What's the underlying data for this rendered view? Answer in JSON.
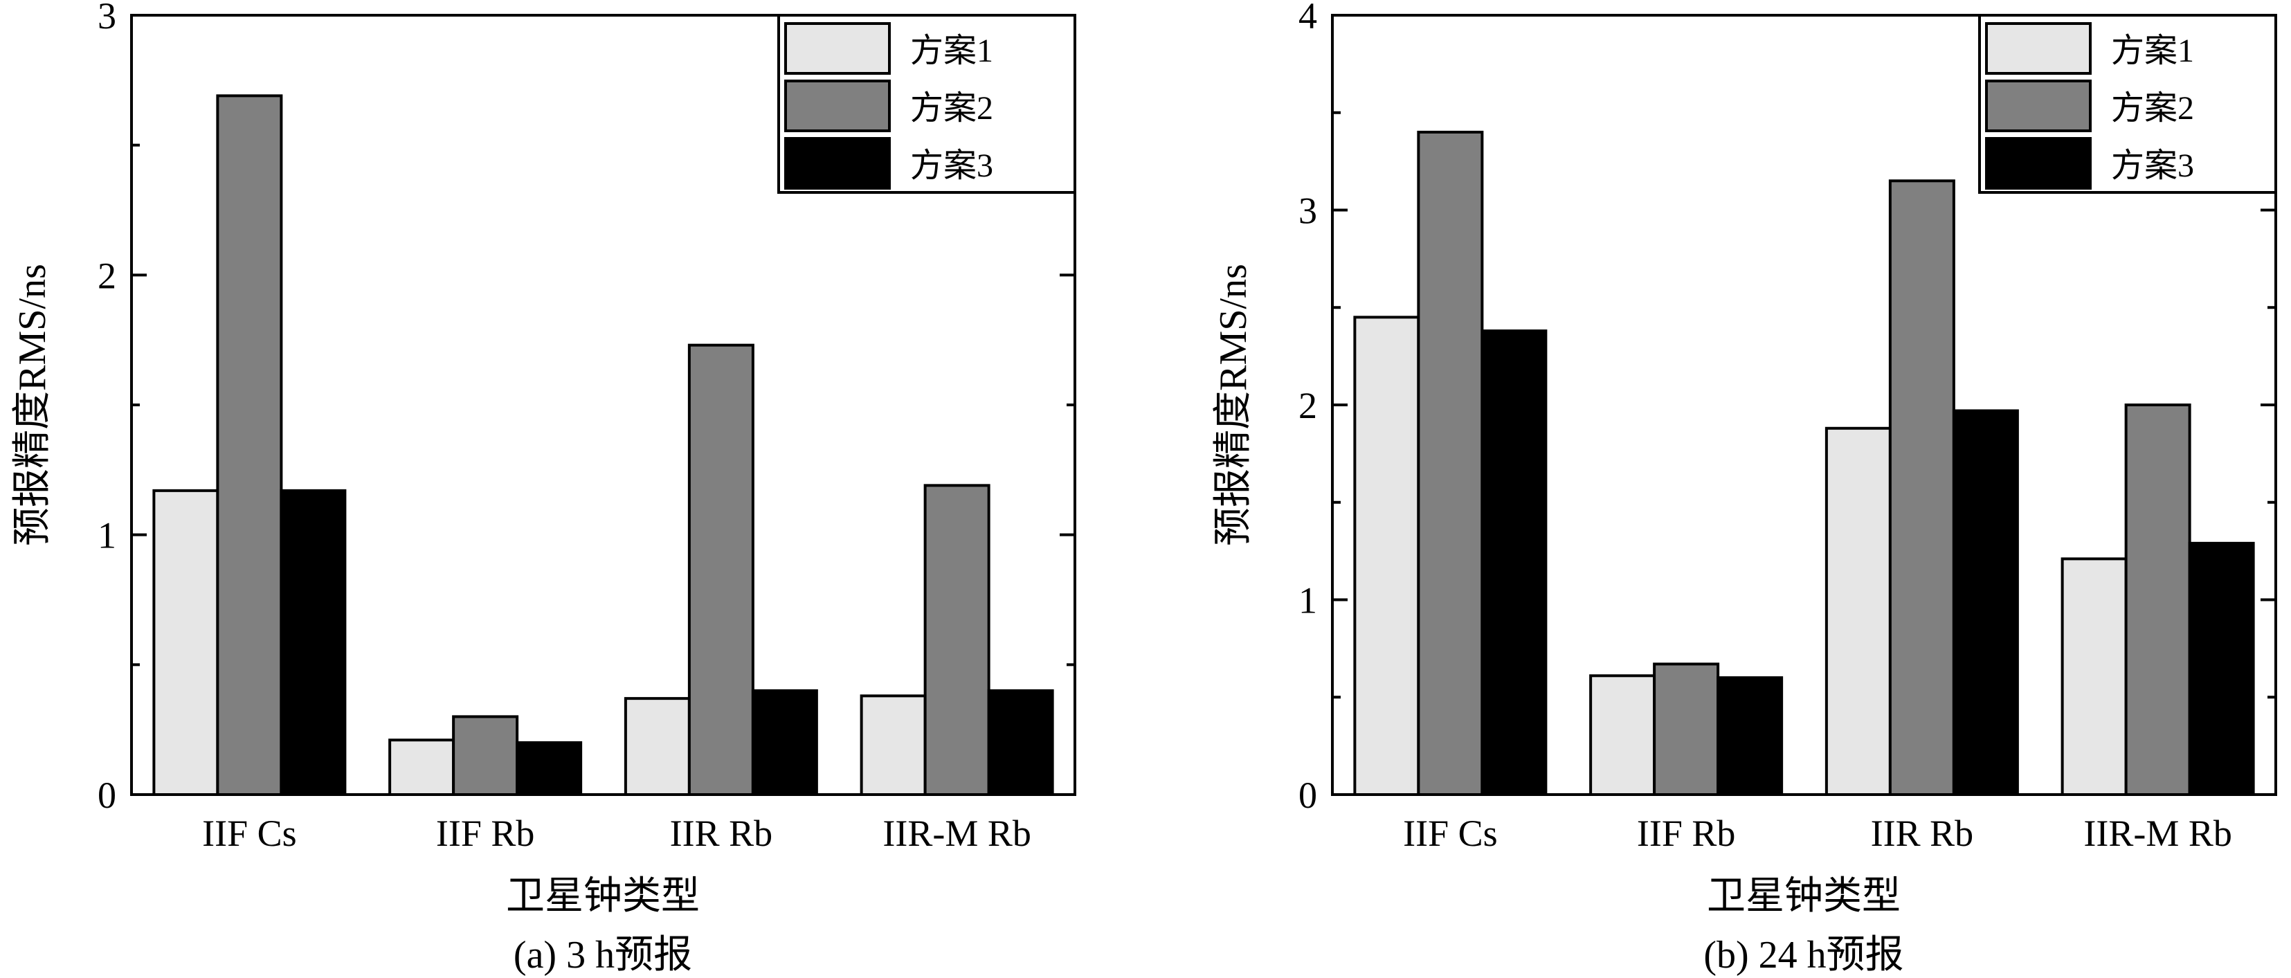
{
  "figure": {
    "shared_xlabel": "卫星钟类型",
    "shared_ylabel": "预报精度RMS/ns",
    "legend_position": "top-right"
  },
  "colors": {
    "series_fills": [
      "#e6e6e6",
      "#808080",
      "#000000"
    ],
    "bar_stroke": "#000000"
  },
  "chart_data": [
    {
      "type": "bar",
      "caption": "(a) 3 h预报",
      "xlabel": "卫星钟类型",
      "ylabel": "预报精度RMS/ns",
      "categories": [
        "IIF Cs",
        "IIF Rb",
        "IIR Rb",
        "IIR-M Rb"
      ],
      "series": [
        {
          "name": "方案1",
          "values": [
            1.17,
            0.21,
            0.37,
            0.38
          ]
        },
        {
          "name": "方案2",
          "values": [
            2.69,
            0.3,
            1.73,
            1.19
          ]
        },
        {
          "name": "方案3",
          "values": [
            1.17,
            0.2,
            0.4,
            0.4
          ]
        }
      ],
      "ylim": [
        0,
        3
      ],
      "yticks": [
        0,
        1,
        2,
        3
      ],
      "yminor_step": 0.5,
      "grid": false,
      "legend": "top-right"
    },
    {
      "type": "bar",
      "caption": "(b) 24 h预报",
      "xlabel": "卫星钟类型",
      "ylabel": "预报精度RMS/ns",
      "categories": [
        "IIF Cs",
        "IIF Rb",
        "IIR Rb",
        "IIR-M Rb"
      ],
      "series": [
        {
          "name": "方案1",
          "values": [
            2.45,
            0.61,
            1.88,
            1.21
          ]
        },
        {
          "name": "方案2",
          "values": [
            3.4,
            0.67,
            3.15,
            2.0
          ]
        },
        {
          "name": "方案3",
          "values": [
            2.38,
            0.6,
            1.97,
            1.29
          ]
        }
      ],
      "ylim": [
        0,
        4
      ],
      "yticks": [
        0,
        1,
        2,
        3,
        4
      ],
      "yminor_step": 0.5,
      "grid": false,
      "legend": "top-right"
    }
  ]
}
